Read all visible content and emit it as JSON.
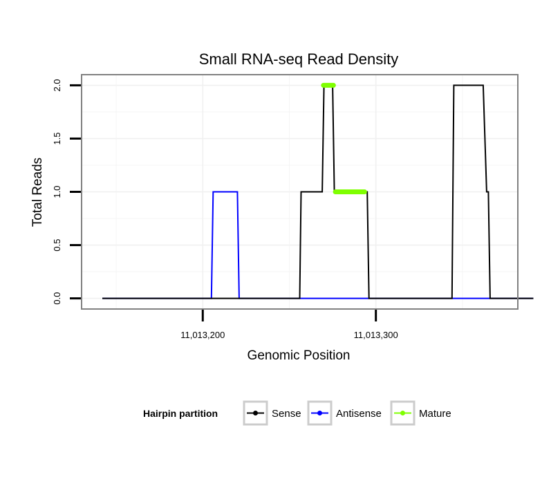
{
  "chart_data": {
    "type": "line",
    "title": "Small RNA-seq Read Density",
    "xlabel": "Genomic Position",
    "ylabel": "Total Reads",
    "xlim": [
      11013130,
      11013382
    ],
    "ylim": [
      -0.1,
      2.1
    ],
    "x_ticks": [
      {
        "value": 11013200,
        "label": "11,013,200"
      },
      {
        "value": 11013300,
        "label": "11,013,300"
      }
    ],
    "y_ticks": [
      {
        "value": 0.0,
        "label": "0.0"
      },
      {
        "value": 0.5,
        "label": "0.5"
      },
      {
        "value": 1.0,
        "label": "1.0"
      },
      {
        "value": 1.5,
        "label": "1.5"
      },
      {
        "value": 2.0,
        "label": "2.0"
      }
    ],
    "grid": true,
    "legend_position": "bottom",
    "legend_title": "Hairpin partition",
    "series": [
      {
        "name": "Sense",
        "color": "#000000",
        "x": [
          11013142,
          11013256,
          11013256.8,
          11013269,
          11013270,
          11013275,
          11013276,
          11013283,
          11013284.3,
          11013295,
          11013296,
          11013344,
          11013345,
          11013362,
          11013364,
          11013365,
          11013366,
          11013391
        ],
        "y": [
          0,
          0,
          1,
          1,
          2,
          2,
          1,
          1,
          1,
          1,
          0,
          0,
          2,
          2,
          1,
          1,
          0,
          0
        ]
      },
      {
        "name": "Antisense",
        "color": "#0000ff",
        "x": [
          11013142,
          11013205,
          11013206,
          11013220,
          11013221,
          11013391
        ],
        "y": [
          0,
          0,
          1,
          1,
          0,
          0
        ]
      },
      {
        "name": "Mature",
        "color": "#7fff00",
        "segments": [
          {
            "x": [
              11013269.7,
              11013275.5
            ],
            "y": [
              2,
              2
            ]
          },
          {
            "x": [
              11013276.6,
              11013293.5
            ],
            "y": [
              1,
              1
            ]
          }
        ]
      }
    ]
  }
}
